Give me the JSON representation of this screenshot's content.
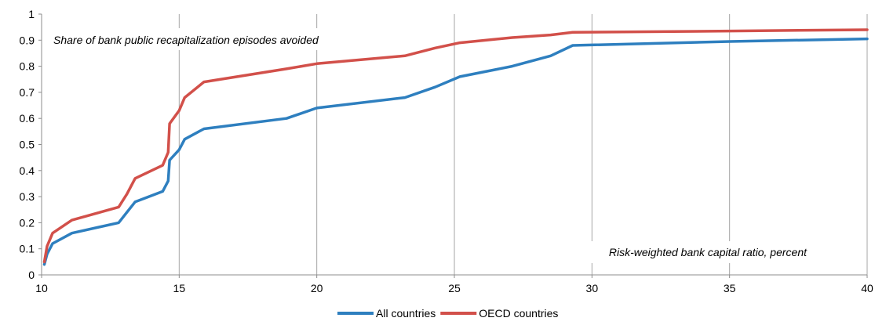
{
  "chart_data": {
    "type": "line",
    "title": "",
    "xlabel": "",
    "ylabel": "",
    "xlim": [
      10,
      40
    ],
    "ylim": [
      0,
      1
    ],
    "x_ticks": [
      10,
      15,
      20,
      25,
      30,
      35,
      40
    ],
    "y_ticks": [
      0,
      0.1,
      0.2,
      0.3,
      0.4,
      0.5,
      0.6,
      0.7,
      0.8,
      0.9,
      1
    ],
    "x_tick_labels": [
      "10",
      "15",
      "20",
      "25",
      "30",
      "35",
      "40"
    ],
    "y_tick_labels": [
      "0",
      "0.1",
      "0.2",
      "0.3",
      "0.4",
      "0.5",
      "0.6",
      "0.7",
      "0.8",
      "0.9",
      "1"
    ],
    "grid": {
      "vertical": true,
      "horizontal": false
    },
    "legend_position": "bottom-center",
    "annotations": {
      "top_left": "Share of bank public recapitalization episodes avoided",
      "bottom_right": "Risk-weighted bank capital ratio, percent"
    },
    "series": [
      {
        "name": "All countries",
        "color": "#2e7fbf",
        "points": [
          [
            10.1,
            0.04
          ],
          [
            10.2,
            0.08
          ],
          [
            10.4,
            0.12
          ],
          [
            11.1,
            0.16
          ],
          [
            12.8,
            0.2
          ],
          [
            13.1,
            0.24
          ],
          [
            13.4,
            0.28
          ],
          [
            14.4,
            0.32
          ],
          [
            14.6,
            0.36
          ],
          [
            14.65,
            0.44
          ],
          [
            15.0,
            0.48
          ],
          [
            15.2,
            0.52
          ],
          [
            15.9,
            0.56
          ],
          [
            18.9,
            0.6
          ],
          [
            20.0,
            0.64
          ],
          [
            23.2,
            0.68
          ],
          [
            24.3,
            0.72
          ],
          [
            25.2,
            0.76
          ],
          [
            27.1,
            0.8
          ],
          [
            28.5,
            0.84
          ],
          [
            29.3,
            0.88
          ],
          [
            35.0,
            0.895
          ],
          [
            40.0,
            0.905
          ]
        ]
      },
      {
        "name": "OECD countries",
        "color": "#d2504a",
        "points": [
          [
            10.1,
            0.05
          ],
          [
            10.2,
            0.11
          ],
          [
            10.4,
            0.16
          ],
          [
            11.1,
            0.21
          ],
          [
            12.8,
            0.26
          ],
          [
            13.1,
            0.31
          ],
          [
            13.4,
            0.37
          ],
          [
            14.4,
            0.42
          ],
          [
            14.6,
            0.47
          ],
          [
            14.65,
            0.58
          ],
          [
            15.0,
            0.63
          ],
          [
            15.2,
            0.68
          ],
          [
            15.9,
            0.74
          ],
          [
            18.9,
            0.79
          ],
          [
            20.0,
            0.81
          ],
          [
            23.2,
            0.84
          ],
          [
            24.3,
            0.87
          ],
          [
            25.2,
            0.89
          ],
          [
            27.1,
            0.91
          ],
          [
            28.5,
            0.92
          ],
          [
            29.3,
            0.93
          ],
          [
            35.0,
            0.935
          ],
          [
            40.0,
            0.94
          ]
        ]
      }
    ]
  }
}
